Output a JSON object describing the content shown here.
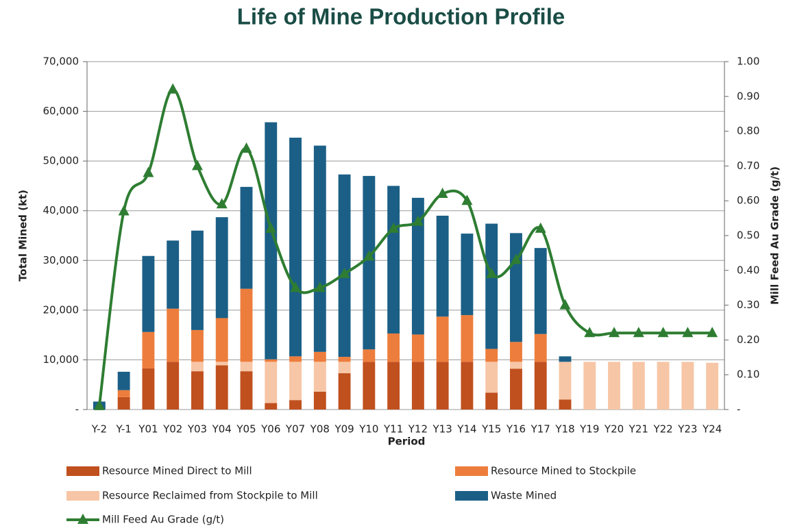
{
  "chart_data": {
    "type": "bar",
    "title": "Life of Mine Production Profile",
    "x_label": "Period",
    "y_label": "Total Mined (kt)",
    "y2_label": "Mill Feed Au Grade (g/t)",
    "categories": [
      "Y-2",
      "Y-1",
      "Y01",
      "Y02",
      "Y03",
      "Y04",
      "Y05",
      "Y06",
      "Y07",
      "Y08",
      "Y09",
      "Y10",
      "Y11",
      "Y12",
      "Y13",
      "Y14",
      "Y15",
      "Y16",
      "Y17",
      "Y18",
      "Y19",
      "Y20",
      "Y21",
      "Y22",
      "Y23",
      "Y24"
    ],
    "stacked": true,
    "grid": true,
    "series": [
      {
        "name": "Resource Mined Direct to Mill",
        "color": "#c0501e",
        "values": [
          0,
          2500,
          8300,
          9600,
          7700,
          8900,
          7700,
          1300,
          1900,
          3600,
          7300,
          9600,
          9600,
          9600,
          9600,
          9600,
          3400,
          8200,
          9600,
          2000,
          0,
          0,
          0,
          0,
          0,
          0
        ]
      },
      {
        "name": "Resource Reclaimed from Stockpile to Mill",
        "color": "#f7c6a6",
        "values": [
          0,
          0,
          0,
          0,
          1900,
          700,
          1900,
          8300,
          7700,
          6000,
          2300,
          0,
          0,
          0,
          0,
          0,
          6200,
          1400,
          0,
          7600,
          9600,
          9600,
          9600,
          9600,
          9600,
          9400
        ]
      },
      {
        "name": "Resource Mined to Stockpile",
        "color": "#ed7d3c",
        "values": [
          0,
          1400,
          7300,
          10700,
          6400,
          8800,
          14700,
          500,
          1100,
          2000,
          1000,
          2500,
          5700,
          5500,
          9100,
          9400,
          2600,
          4000,
          5600,
          0,
          0,
          0,
          0,
          0,
          0,
          0
        ]
      },
      {
        "name": "Waste Mined",
        "color": "#1b5f86",
        "values": [
          1600,
          3700,
          15300,
          13700,
          20000,
          20300,
          20500,
          47700,
          44000,
          41500,
          36700,
          34900,
          29700,
          27500,
          20300,
          16400,
          25200,
          21900,
          17300,
          1100,
          0,
          0,
          0,
          0,
          0,
          0
        ]
      },
      {
        "name": "Mill Feed Au Grade (g/t)",
        "type": "line",
        "axis": "y2",
        "color": "#2e7d32",
        "values": [
          0.01,
          0.57,
          0.68,
          0.92,
          0.7,
          0.59,
          0.75,
          0.52,
          0.35,
          0.35,
          0.39,
          0.44,
          0.52,
          0.54,
          0.62,
          0.6,
          0.39,
          0.43,
          0.52,
          0.3,
          0.22,
          0.22,
          0.22,
          0.22,
          0.22,
          0.22
        ]
      }
    ],
    "ylim": [
      0,
      70000
    ],
    "yticks": [
      {
        "value": 0,
        "label": "-"
      },
      {
        "value": 10000,
        "label": "10,000"
      },
      {
        "value": 20000,
        "label": "20,000"
      },
      {
        "value": 30000,
        "label": "30,000"
      },
      {
        "value": 40000,
        "label": "40,000"
      },
      {
        "value": 50000,
        "label": "50,000"
      },
      {
        "value": 60000,
        "label": "60,000"
      },
      {
        "value": 70000,
        "label": "70,000"
      }
    ],
    "y2lim": [
      0,
      1
    ],
    "y2ticks": [
      {
        "value": 0,
        "label": "-"
      },
      {
        "value": 0.1,
        "label": "0.10"
      },
      {
        "value": 0.2,
        "label": "0.20"
      },
      {
        "value": 0.3,
        "label": "0.30"
      },
      {
        "value": 0.4,
        "label": "0.40"
      },
      {
        "value": 0.5,
        "label": "0.50"
      },
      {
        "value": 0.6,
        "label": "0.60"
      },
      {
        "value": 0.7,
        "label": "0.70"
      },
      {
        "value": 0.8,
        "label": "0.80"
      },
      {
        "value": 0.9,
        "label": "0.90"
      },
      {
        "value": 1,
        "label": "1.00"
      }
    ]
  }
}
